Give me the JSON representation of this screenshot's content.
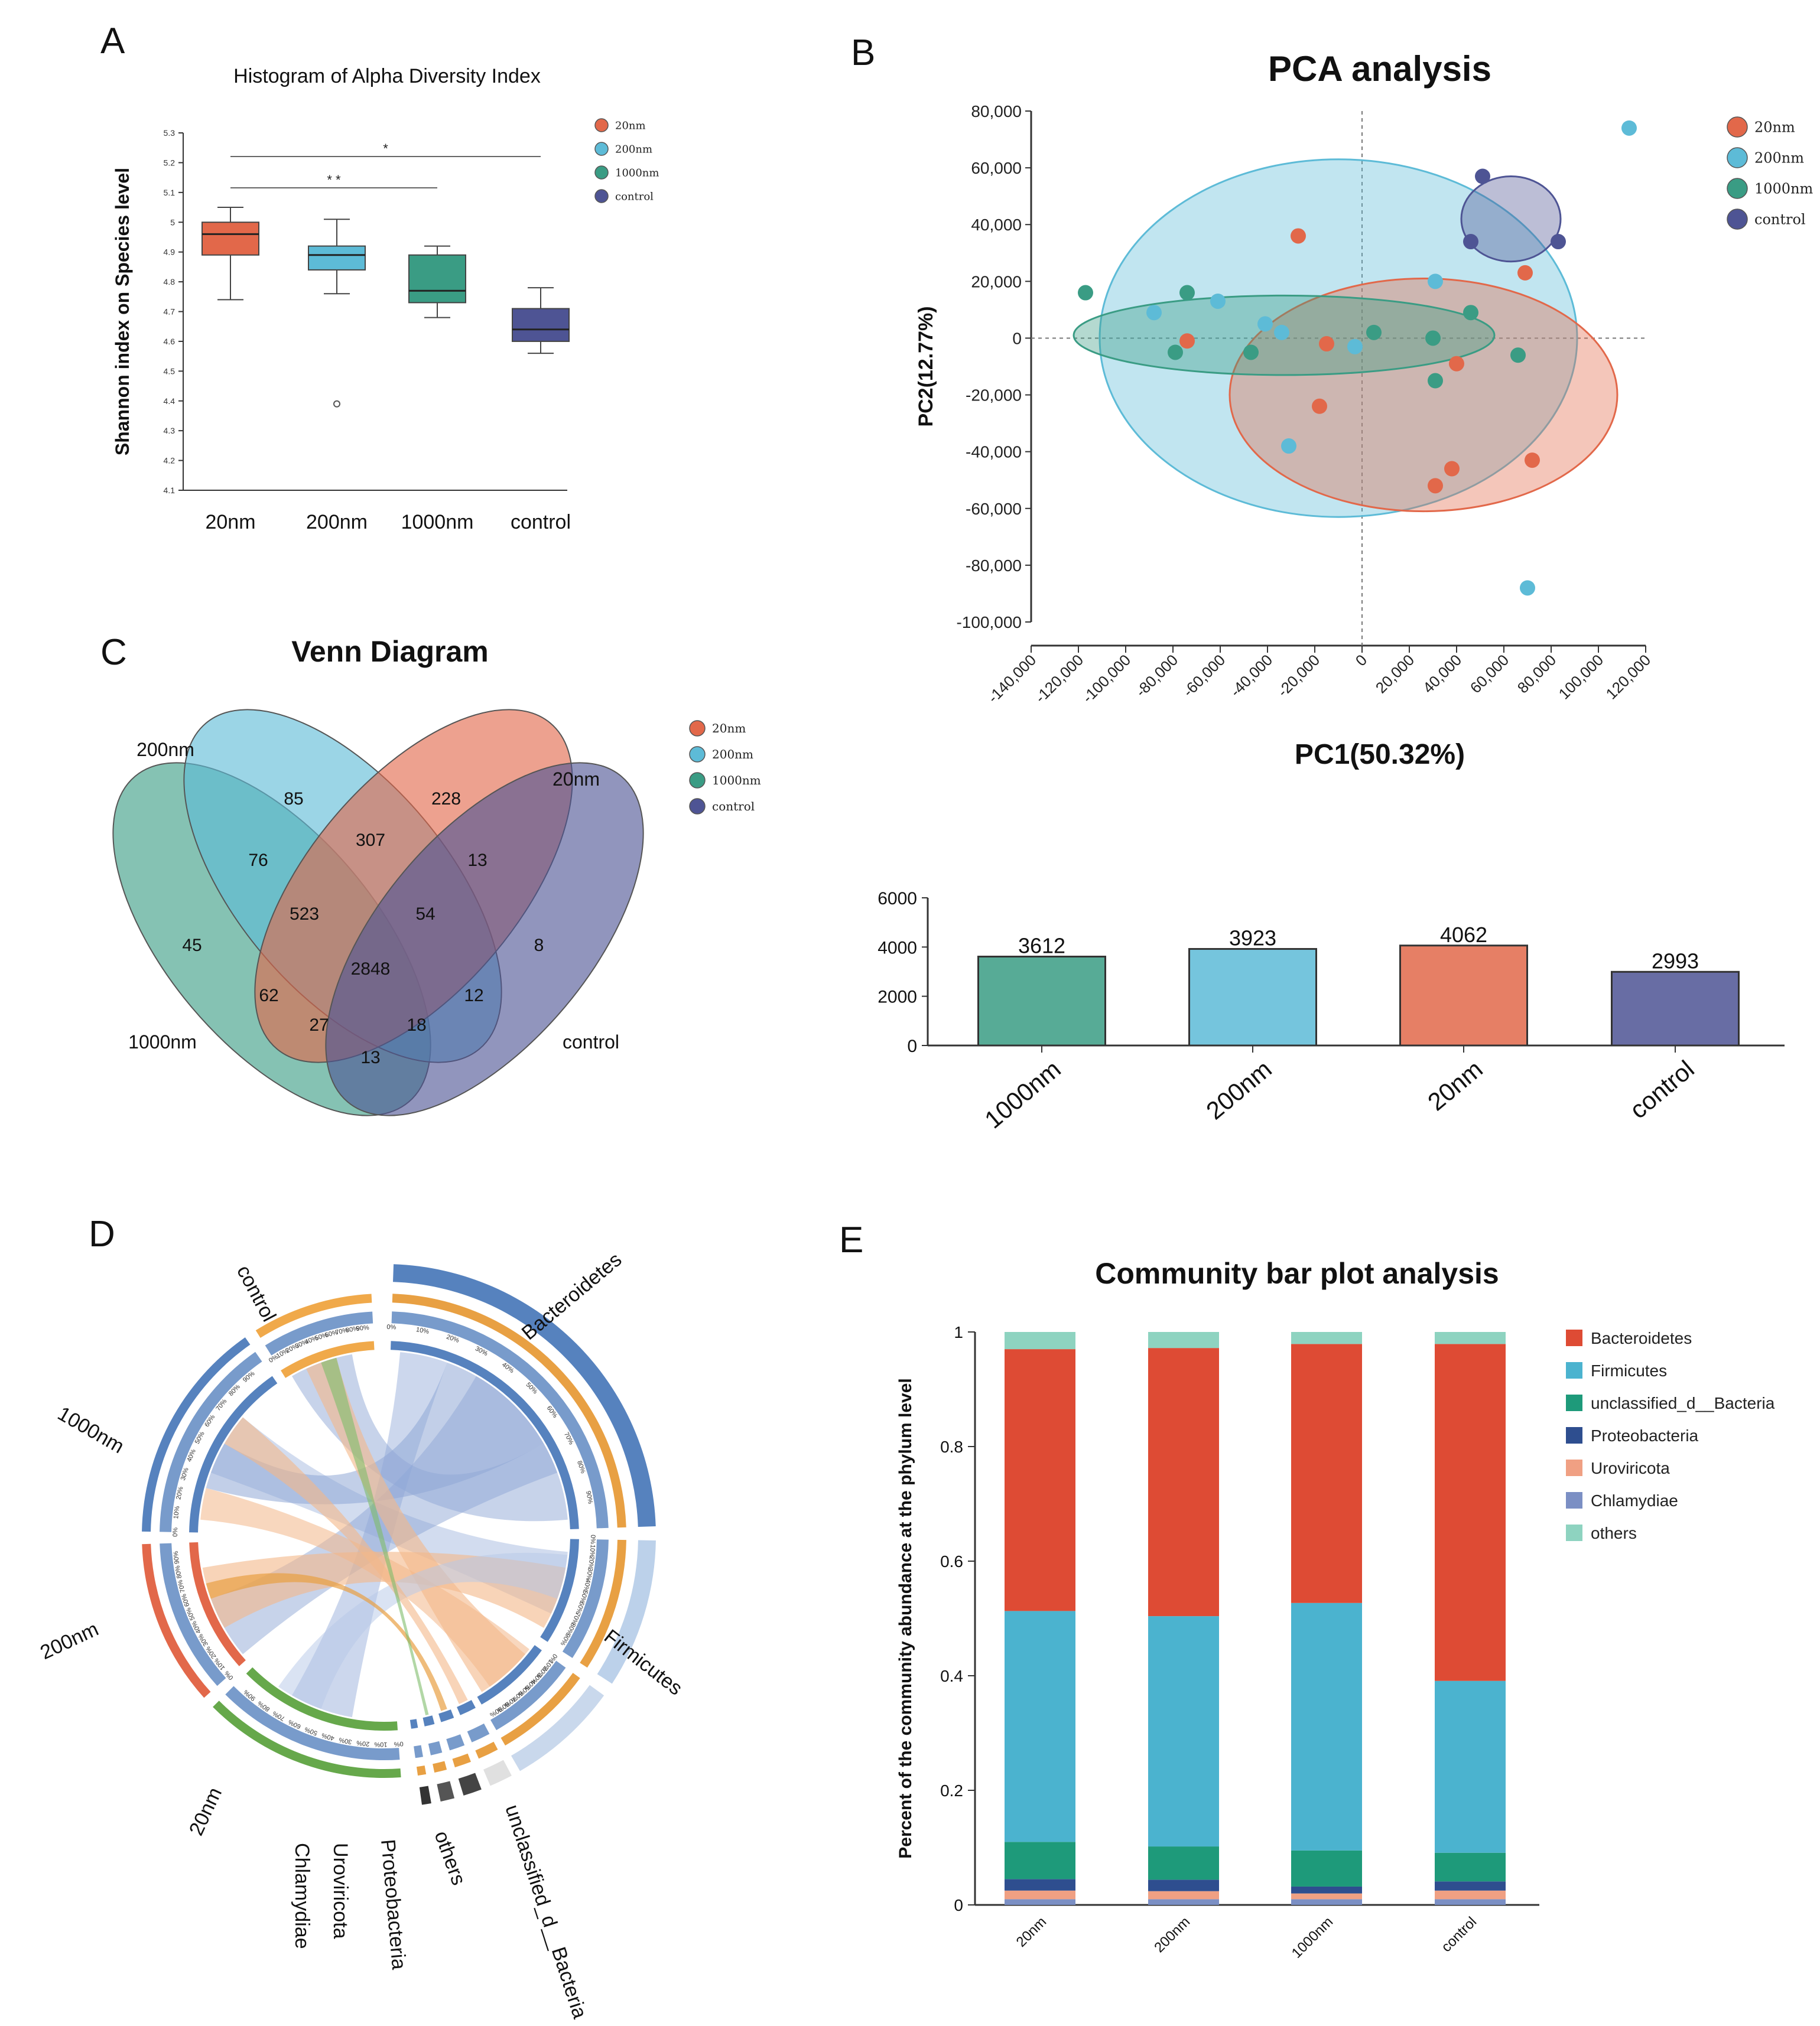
{
  "panels": {
    "a": "A",
    "b": "B",
    "c": "C",
    "d": "D",
    "e": "E"
  },
  "colors": {
    "20nm": "#E2684A",
    "200nm": "#5DBBD7",
    "1000nm": "#3A9C84",
    "control": "#4E5494"
  },
  "chart_data": [
    {
      "id": "A",
      "type": "box",
      "title": "Histogram of Alpha Diversity Index",
      "ylabel": "Shannon index on Species level",
      "ylim": [
        4.1,
        5.3
      ],
      "yticks": [
        "4.1",
        "4.2",
        "4.3",
        "4.4",
        "4.5",
        "4.6",
        "4.7",
        "4.8",
        "4.9",
        "5",
        "5.1",
        "5.2",
        "5.3"
      ],
      "categories": [
        "20nm",
        "200nm",
        "1000nm",
        "control"
      ],
      "boxes": [
        {
          "name": "20nm",
          "min": 4.74,
          "q1": 4.89,
          "median": 4.96,
          "q3": 5.0,
          "max": 5.05,
          "outliers": []
        },
        {
          "name": "200nm",
          "min": 4.76,
          "q1": 4.84,
          "median": 4.89,
          "q3": 4.92,
          "max": 5.01,
          "outliers": [
            4.39
          ]
        },
        {
          "name": "1000nm",
          "min": 4.68,
          "q1": 4.73,
          "median": 4.77,
          "q3": 4.89,
          "max": 4.92,
          "outliers": []
        },
        {
          "name": "control",
          "min": 4.56,
          "q1": 4.6,
          "median": 4.64,
          "q3": 4.71,
          "max": 4.78,
          "outliers": []
        }
      ],
      "significance": [
        {
          "from": "20nm",
          "to": "1000nm",
          "label": "* *"
        },
        {
          "from": "20nm",
          "to": "control",
          "label": "*"
        }
      ],
      "legend": [
        "20nm",
        "200nm",
        "1000nm",
        "control"
      ]
    },
    {
      "id": "B",
      "type": "scatter",
      "title": "PCA analysis",
      "xlabel": "PC1(50.32%)",
      "ylabel": "PC2(12.77%)",
      "xlim": [
        -140000,
        120000
      ],
      "ylim": [
        -100000,
        80000
      ],
      "xticks": [
        "-140,000",
        "-120,000",
        "-100,000",
        "-80,000",
        "-60,000",
        "-40,000",
        "-20,000",
        "0",
        "20,000",
        "40,000",
        "60,000",
        "80,000",
        "100,000",
        "120,000"
      ],
      "yticks": [
        "80,000",
        "60,000",
        "40,000",
        "20,000",
        "0",
        "-20,000",
        "-40,000",
        "-60,000",
        "-80,000",
        "-100,000"
      ],
      "legend": [
        "20nm",
        "200nm",
        "1000nm",
        "control"
      ],
      "series": [
        {
          "name": "20nm",
          "points": [
            [
              -27000,
              36000
            ],
            [
              69000,
              23000
            ],
            [
              -74000,
              -1000
            ],
            [
              -15000,
              -2000
            ],
            [
              40000,
              -9000
            ],
            [
              -18000,
              -24000
            ],
            [
              72000,
              -43000
            ],
            [
              38000,
              -46000
            ],
            [
              31000,
              -52000
            ]
          ]
        },
        {
          "name": "200nm",
          "points": [
            [
              113000,
              74000
            ],
            [
              31000,
              20000
            ],
            [
              -88000,
              9000
            ],
            [
              -61000,
              13000
            ],
            [
              -41000,
              5000
            ],
            [
              -34000,
              2000
            ],
            [
              -3000,
              -3000
            ],
            [
              -31000,
              -38000
            ],
            [
              70000,
              -88000
            ]
          ]
        },
        {
          "name": "1000nm",
          "points": [
            [
              -117000,
              16000
            ],
            [
              -74000,
              16000
            ],
            [
              -79000,
              -5000
            ],
            [
              -47000,
              -5000
            ],
            [
              5000,
              2000
            ],
            [
              30000,
              0
            ],
            [
              46000,
              9000
            ],
            [
              31000,
              -15000
            ],
            [
              66000,
              -6000
            ]
          ]
        },
        {
          "name": "control",
          "points": [
            [
              51000,
              57000
            ],
            [
              46000,
              34000
            ],
            [
              83000,
              34000
            ]
          ]
        }
      ],
      "ellipses": [
        {
          "name": "200nm",
          "cx": -10000,
          "cy": 0,
          "rx": 101000,
          "ry": 63000
        },
        {
          "name": "20nm",
          "cx": 26000,
          "cy": -20000,
          "rx": 82000,
          "ry": 41000
        },
        {
          "name": "1000nm",
          "cx": -33000,
          "cy": 1000,
          "rx": 89000,
          "ry": 14000
        },
        {
          "name": "control",
          "cx": 63000,
          "cy": 42000,
          "rx": 21000,
          "ry": 15000
        }
      ]
    },
    {
      "id": "C",
      "type": "venn",
      "title": "Venn Diagram",
      "sets": [
        "200nm",
        "20nm",
        "1000nm",
        "control"
      ],
      "legend": [
        "20nm",
        "200nm",
        "1000nm",
        "control"
      ],
      "regions": [
        {
          "label": "85"
        },
        {
          "label": "228"
        },
        {
          "label": "307"
        },
        {
          "label": "76"
        },
        {
          "label": "13"
        },
        {
          "label": "523"
        },
        {
          "label": "54"
        },
        {
          "label": "45"
        },
        {
          "label": "8"
        },
        {
          "label": "2848"
        },
        {
          "label": "62"
        },
        {
          "label": "12"
        },
        {
          "label": "27"
        },
        {
          "label": "18"
        },
        {
          "label": "13"
        }
      ]
    },
    {
      "id": "C2",
      "type": "bar",
      "categories": [
        "1000nm",
        "200nm",
        "20nm",
        "control"
      ],
      "values": [
        3612,
        3923,
        4062,
        2993
      ],
      "ylim": [
        0,
        6000
      ],
      "yticks": [
        "0",
        "2000",
        "4000",
        "6000"
      ]
    },
    {
      "id": "D",
      "type": "chord",
      "samples": [
        "control",
        "1000nm",
        "200nm",
        "20nm"
      ],
      "phyla": [
        "Bacteroidetes",
        "Firmicutes",
        "unclassified_d__Bacteria",
        "others",
        "Proteobacteria",
        "Uroviricota",
        "Chlamydiae"
      ],
      "percent_ticks": [
        "0%",
        "10%",
        "20%",
        "30%",
        "40%",
        "50%",
        "60%",
        "70%",
        "80%",
        "90%"
      ]
    },
    {
      "id": "E",
      "type": "stacked_bar",
      "title": "Community bar plot analysis",
      "ylabel": "Percent of the community abundance at the phylum level",
      "ylim": [
        0,
        1
      ],
      "yticks": [
        "0",
        "0.2",
        "0.4",
        "0.6",
        "0.8",
        "1"
      ],
      "categories": [
        "20nm",
        "200nm",
        "1000nm",
        "control"
      ],
      "series": [
        {
          "name": "Chlamydiae",
          "color": "#7B8FC4",
          "values": [
            0.01,
            0.01,
            0.01,
            0.01
          ]
        },
        {
          "name": "Uroviricota",
          "color": "#F0A083",
          "values": [
            0.015,
            0.014,
            0.01,
            0.015
          ]
        },
        {
          "name": "Proteobacteria",
          "color": "#2E4E8F",
          "values": [
            0.02,
            0.02,
            0.012,
            0.016
          ]
        },
        {
          "name": "unclassified_d__Bacteria",
          "color": "#1E9A7A",
          "values": [
            0.065,
            0.058,
            0.063,
            0.05
          ]
        },
        {
          "name": "Firmicutes",
          "color": "#4BB3CF",
          "values": [
            0.403,
            0.402,
            0.432,
            0.3
          ]
        },
        {
          "name": "Bacteroidetes",
          "color": "#DE4B34",
          "values": [
            0.457,
            0.468,
            0.452,
            0.588
          ]
        },
        {
          "name": "others",
          "color": "#8ED3C0",
          "values": [
            0.03,
            0.028,
            0.021,
            0.021
          ]
        }
      ],
      "legend": [
        "Bacteroidetes",
        "Firmicutes",
        "unclassified_d__Bacteria",
        "Proteobacteria",
        "Uroviricota",
        "Chlamydiae",
        "others"
      ]
    }
  ]
}
